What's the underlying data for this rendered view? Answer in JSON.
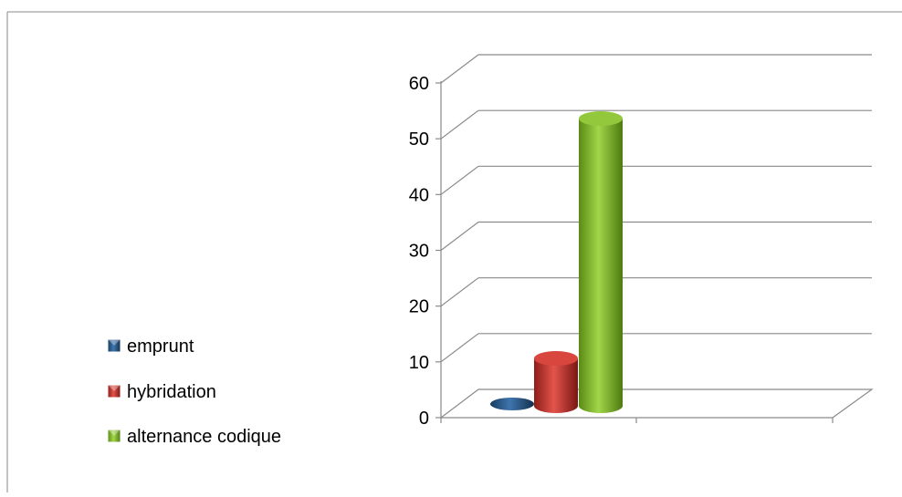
{
  "chart_data": {
    "type": "bar",
    "style": "3d-cylinder",
    "title": "",
    "xlabel": "",
    "ylabel": "",
    "ylim": [
      0,
      60
    ],
    "yticks": [
      0,
      10,
      20,
      30,
      40,
      50,
      60
    ],
    "grid": true,
    "legend_position": "left",
    "categories": [
      ""
    ],
    "series": [
      {
        "name": "emprunt",
        "values": [
          0
        ],
        "color": "#1f4e79"
      },
      {
        "name": "hybridation",
        "values": [
          8.5
        ],
        "color": "#c0302a"
      },
      {
        "name": "alternance codique",
        "values": [
          51.5
        ],
        "color": "#7ab51d"
      }
    ]
  }
}
